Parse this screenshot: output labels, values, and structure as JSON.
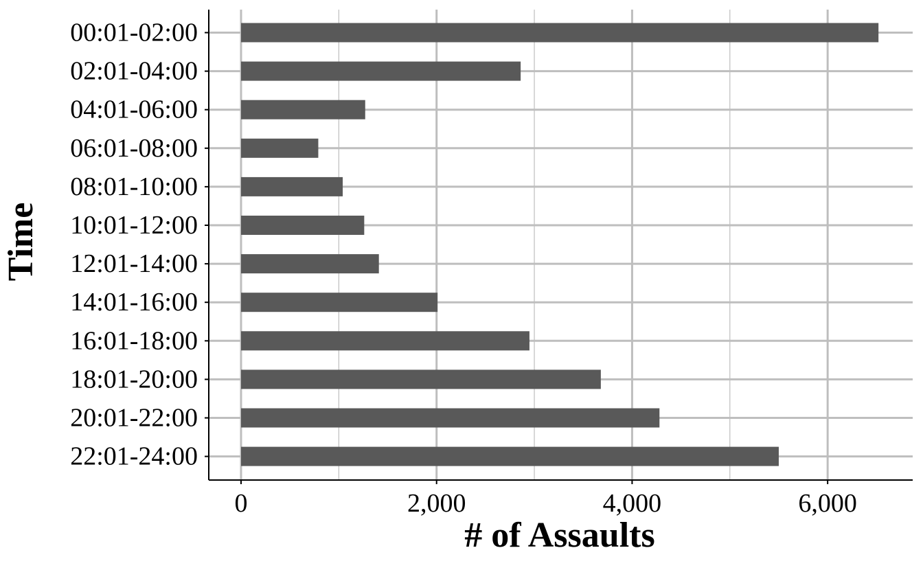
{
  "chart_data": {
    "type": "bar",
    "orientation": "horizontal",
    "title": "",
    "xlabel": "# of Assaults",
    "ylabel": "Time",
    "categories": [
      "00:01-02:00",
      "02:01-04:00",
      "04:01-06:00",
      "06:01-08:00",
      "08:01-10:00",
      "10:01-12:00",
      "12:01-14:00",
      "14:01-16:00",
      "16:01-18:00",
      "18:01-20:00",
      "20:01-22:00",
      "22:01-24:00"
    ],
    "values": [
      6520,
      2860,
      1270,
      790,
      1040,
      1260,
      1410,
      2010,
      2950,
      3680,
      4280,
      5500
    ],
    "xlim": [
      -330,
      6870
    ],
    "x_ticks": [
      0,
      2000,
      4000,
      6000
    ],
    "x_tick_labels": [
      "0",
      "2,000",
      "4,000",
      "6,000"
    ],
    "grid": true,
    "legend": "none",
    "colors": {
      "bar": "#595959",
      "grid": "#bebebe",
      "axis": "#000000",
      "background": "#ffffff"
    }
  }
}
